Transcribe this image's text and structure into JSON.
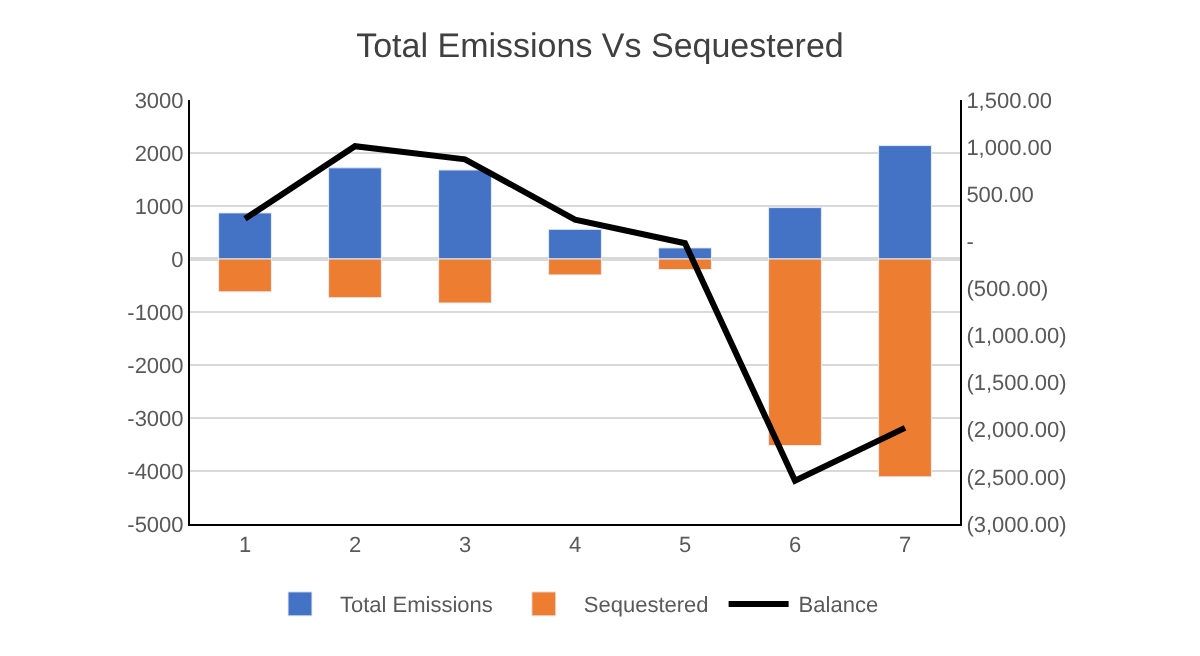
{
  "chart_data": {
    "type": "bar",
    "title": "Total Emissions Vs Sequestered",
    "categories": [
      "1",
      "2",
      "3",
      "4",
      "5",
      "6",
      "7"
    ],
    "stacked": true,
    "series": [
      {
        "name": "Total Emissions",
        "color": "#4472c4",
        "values": [
          870,
          1720,
          1680,
          560,
          210,
          970,
          2140
        ]
      },
      {
        "name": "Sequestered",
        "color": "#ed7d31",
        "values": [
          -620,
          -730,
          -830,
          -300,
          -200,
          -3520,
          -4110
        ]
      },
      {
        "name": "Balance",
        "type": "line",
        "axis": "y2",
        "color": "#000000",
        "values": [
          240,
          1010,
          870,
          230,
          -20,
          -2540,
          -1980
        ]
      }
    ],
    "ylim": [
      -5000,
      3000
    ],
    "yticks": [
      -5000,
      -4000,
      -3000,
      -2000,
      -1000,
      0,
      1000,
      2000,
      3000
    ],
    "y2lim": [
      -3000,
      1500
    ],
    "y2ticks": [
      {
        "value": -3000,
        "label": "(3,000.00)"
      },
      {
        "value": -2500,
        "label": "(2,500.00)"
      },
      {
        "value": -2000,
        "label": "(2,000.00)"
      },
      {
        "value": -1500,
        "label": "(1,500.00)"
      },
      {
        "value": -1000,
        "label": "(1,000.00)"
      },
      {
        "value": -500,
        "label": "(500.00)"
      },
      {
        "value": 0,
        "label": "-"
      },
      {
        "value": 500,
        "label": "500.00"
      },
      {
        "value": 1000,
        "label": "1,000.00"
      },
      {
        "value": 1500,
        "label": "1,500.00"
      }
    ],
    "grid": "y",
    "legend": "bottom",
    "marker": "none",
    "line_style": "solid"
  }
}
